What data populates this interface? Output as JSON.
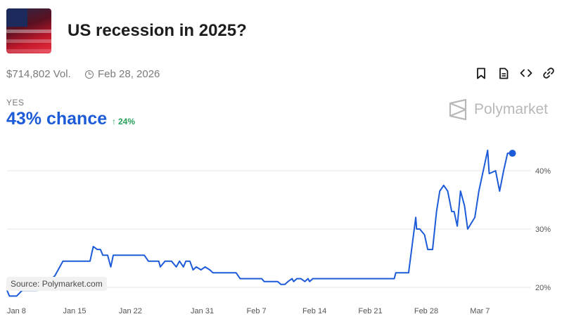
{
  "market": {
    "title": "US recession in 2025?",
    "volume": "$714,802 Vol.",
    "end_date": "Feb 28, 2026",
    "outcome": "YES",
    "chance": "43% chance",
    "change": "24%",
    "brand": "Polymarket",
    "source": "Source: Polymarket.com"
  },
  "toolbar": {
    "bookmark_icon": "bookmark-icon",
    "document_icon": "document-icon",
    "embed_icon": "code-icon",
    "link_icon": "link-icon"
  },
  "colors": {
    "line": "#1d5bd8",
    "chance": "#1d5bd8",
    "change": "#27a05a",
    "grid": "#e6e6e6",
    "brand": "#b8b8b8"
  },
  "chart_data": {
    "type": "line",
    "title": "",
    "xlabel": "",
    "ylabel": "",
    "ylim": [
      18,
      45
    ],
    "y_ticks": [
      20,
      30,
      40
    ],
    "y_tick_labels": [
      "20%",
      "30%",
      "40%"
    ],
    "x_ticks": [
      {
        "day": 0,
        "label": "Jan 8"
      },
      {
        "day": 7,
        "label": "Jan 15"
      },
      {
        "day": 14,
        "label": "Jan 22"
      },
      {
        "day": 23,
        "label": "Jan 31"
      },
      {
        "day": 30,
        "label": "Feb 7"
      },
      {
        "day": 37,
        "label": "Feb 14"
      },
      {
        "day": 44,
        "label": "Feb 21"
      },
      {
        "day": 51,
        "label": "Feb 28"
      },
      {
        "day": 58,
        "label": "Mar 7"
      }
    ],
    "grid": "horizontal",
    "series": [
      {
        "x": [
          0,
          0.3,
          1.2,
          1.9,
          2.2,
          3.8,
          5.2,
          6.0,
          7.0,
          7.7,
          8.1,
          10.4,
          10.8,
          11.3,
          11.7,
          12.0,
          12.6,
          13.0,
          13.3,
          14.4,
          15.3,
          17.2,
          17.7,
          18.3,
          19.0,
          19.2,
          19.8,
          20.3,
          20.6,
          21.2,
          21.6,
          22.1,
          22.4,
          22.9,
          23.3,
          23.7,
          24.3,
          24.8,
          25.4,
          25.8,
          26.4,
          26.9,
          27.3,
          28.7,
          29.2,
          29.6,
          31.9,
          32.2,
          33.9,
          34.3,
          34.8,
          35.2,
          35.7,
          35.9,
          36.3,
          36.8,
          37.3,
          37.7,
          37.9,
          38.3,
          38.5,
          48.5,
          48.7,
          49.6,
          50.3,
          51.2,
          51.3,
          51.7,
          52.3,
          52.7,
          53.3,
          53.8,
          54.2,
          54.7,
          55.2,
          55.7,
          56.0,
          56.4,
          56.8,
          57.3,
          57.7,
          58.6,
          59.1,
          60.2,
          60.4,
          61.2,
          61.7,
          62.2,
          62.7,
          63.3
        ],
        "y": [
          19.5,
          18.5,
          18.5,
          19.5,
          19.5,
          19.5,
          21.0,
          22.0,
          24.5,
          24.5,
          24.5,
          24.5,
          27.0,
          26.5,
          26.5,
          25.5,
          25.5,
          23.5,
          25.5,
          25.5,
          25.5,
          25.5,
          24.5,
          24.5,
          24.5,
          23.5,
          24.5,
          24.5,
          24.5,
          23.5,
          24.5,
          23.5,
          24.5,
          24.5,
          23.0,
          23.5,
          23.0,
          23.5,
          23.0,
          22.5,
          22.5,
          22.5,
          22.5,
          22.5,
          21.5,
          21.5,
          21.5,
          21.0,
          21.0,
          20.5,
          20.5,
          21.0,
          21.5,
          21.0,
          21.5,
          21.5,
          21.0,
          21.5,
          21.0,
          21.5,
          21.5,
          21.5,
          22.5,
          22.5,
          22.5,
          32.0,
          30.0,
          30.0,
          29.0,
          26.5,
          26.5,
          33.0,
          36.5,
          37.5,
          36.5,
          33.0,
          33.0,
          30.5,
          36.5,
          34.0,
          30.0,
          32.0,
          36.5,
          43.5,
          39.5,
          40.0,
          36.5,
          40.0,
          43.0,
          43.0
        ]
      }
    ]
  }
}
